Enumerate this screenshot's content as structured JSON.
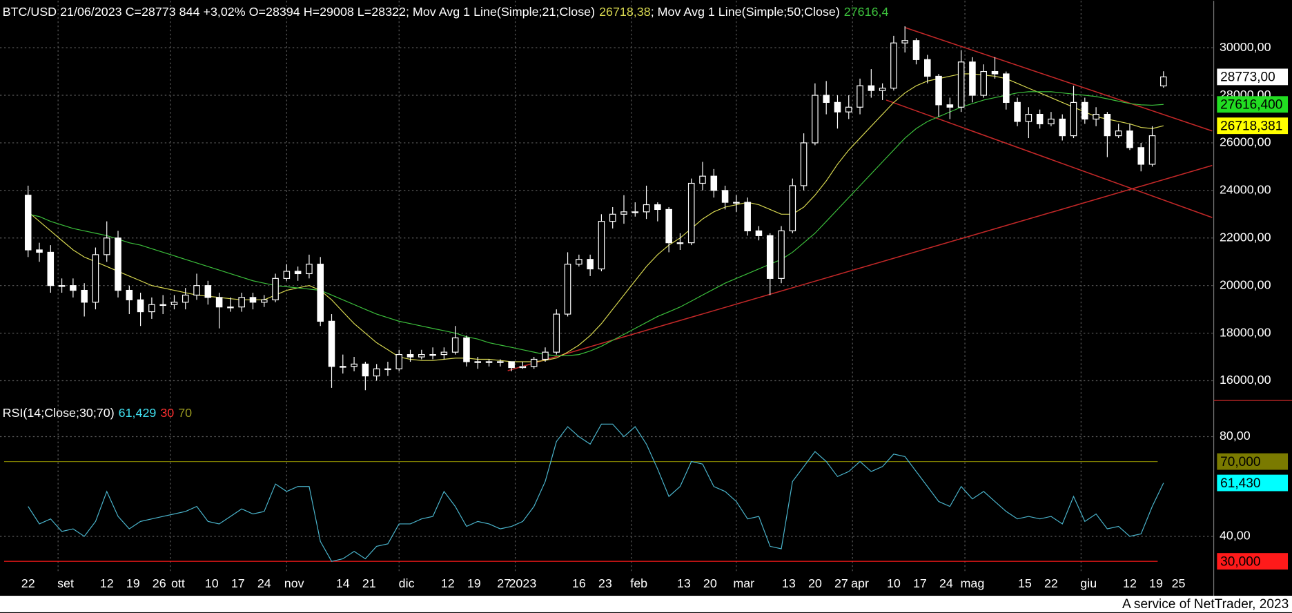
{
  "chart_data": [
    {
      "type": "candlestick",
      "title": "BTC/USD 21/06/2023 C=28773 844 +3,02% O=28394 H=29008 L=28322",
      "candle_color": "#ffffff",
      "x": [
        0,
        3,
        6,
        9,
        12,
        15,
        18,
        21,
        24,
        27,
        30,
        33,
        36,
        39,
        42,
        45,
        48,
        51,
        54,
        57,
        60,
        63,
        66,
        69,
        72,
        75,
        78,
        81,
        84,
        87,
        90,
        93,
        96,
        99,
        102,
        105,
        108,
        111,
        114,
        117,
        120,
        123,
        126,
        129,
        132,
        135,
        138,
        141,
        144,
        147,
        150,
        153,
        156,
        159,
        162,
        165,
        168,
        171,
        174,
        177,
        180,
        183,
        186,
        189,
        192,
        195,
        198,
        201,
        204,
        207,
        210,
        213,
        216,
        219,
        222,
        225,
        228,
        231,
        234,
        237,
        240,
        243,
        246,
        249,
        252,
        255,
        258,
        261,
        264,
        267,
        270,
        273,
        276,
        279,
        282,
        285,
        288,
        291,
        294,
        297,
        300,
        303
      ],
      "open": [
        23800,
        21500,
        21400,
        20000,
        20000,
        19800,
        19300,
        21300,
        22000,
        19800,
        19400,
        18900,
        19200,
        19200,
        19300,
        19600,
        20000,
        19500,
        19100,
        19100,
        19500,
        19300,
        19400,
        20300,
        20600,
        20500,
        20900,
        18500,
        16600,
        16600,
        16700,
        16200,
        16500,
        16500,
        17100,
        17000,
        17100,
        17100,
        17200,
        17800,
        16800,
        16800,
        16800,
        16800,
        16550,
        16600,
        16900,
        17200,
        18800,
        20900,
        21100,
        20700,
        22700,
        23000,
        23100,
        23100,
        23400,
        23200,
        21800,
        21800,
        24300,
        24600,
        24000,
        23500,
        23500,
        22300,
        22100,
        20300,
        22300,
        24200,
        26000,
        28000,
        27700,
        27300,
        27500,
        28400,
        28200,
        28300,
        30200,
        30300,
        29500,
        28800,
        27600,
        27500,
        29400,
        28000,
        29000,
        28900,
        27700,
        26900,
        27200,
        26800,
        27000,
        26300,
        27700,
        27000,
        27200,
        26300,
        26500,
        25800,
        25100,
        28394
      ],
      "high": [
        24200,
        21800,
        21700,
        20300,
        20300,
        20100,
        21600,
        22700,
        22300,
        20000,
        19700,
        19500,
        19600,
        19600,
        19900,
        20500,
        20200,
        19700,
        19500,
        19700,
        19700,
        19600,
        20500,
        20900,
        20800,
        21300,
        21200,
        18800,
        17100,
        17000,
        16800,
        16700,
        16800,
        17300,
        17300,
        17300,
        17400,
        17400,
        18300,
        17900,
        17000,
        16900,
        16900,
        16800,
        16800,
        17000,
        17400,
        19000,
        21400,
        21300,
        21300,
        23000,
        23300,
        23800,
        23500,
        24200,
        23500,
        23300,
        22200,
        24500,
        25200,
        24900,
        24200,
        23800,
        23700,
        22500,
        22200,
        22500,
        24500,
        26400,
        28500,
        28600,
        28000,
        28000,
        28700,
        29100,
        28500,
        30500,
        30900,
        30400,
        29700,
        28900,
        27900,
        29900,
        29600,
        29300,
        29600,
        29000,
        27900,
        27500,
        27400,
        27300,
        27200,
        28400,
        27900,
        27500,
        27300,
        26800,
        26800,
        26000,
        26700,
        29008
      ],
      "low": [
        21200,
        21000,
        19700,
        19700,
        19500,
        18700,
        19000,
        21000,
        19500,
        18800,
        18300,
        18600,
        18800,
        19000,
        19000,
        19400,
        19200,
        18200,
        18900,
        18900,
        19000,
        19100,
        19300,
        20200,
        20200,
        20300,
        18300,
        15700,
        16300,
        16400,
        15600,
        16000,
        16200,
        16400,
        16800,
        16900,
        16900,
        16900,
        17100,
        16600,
        16500,
        16600,
        16600,
        16400,
        16500,
        16500,
        16800,
        17100,
        18700,
        20800,
        20400,
        20600,
        22400,
        22600,
        22900,
        22800,
        22700,
        21400,
        21500,
        21700,
        24000,
        23700,
        23200,
        23100,
        22100,
        21900,
        19600,
        20100,
        22200,
        24000,
        25900,
        27200,
        26600,
        27000,
        27200,
        27900,
        27800,
        28200,
        29800,
        29300,
        28500,
        27100,
        27000,
        27300,
        27700,
        27900,
        28700,
        27400,
        26700,
        26200,
        26600,
        26700,
        26100,
        26200,
        26800,
        26700,
        25400,
        26200,
        25700,
        24800,
        25000,
        28322
      ],
      "close": [
        21500,
        21400,
        20000,
        20000,
        19800,
        19300,
        21300,
        22000,
        19800,
        19400,
        18900,
        19200,
        19200,
        19300,
        19600,
        20000,
        19500,
        19100,
        19100,
        19500,
        19300,
        19400,
        20300,
        20600,
        20500,
        20900,
        18500,
        16600,
        16600,
        16700,
        16200,
        16500,
        16500,
        17100,
        17000,
        17100,
        17100,
        17200,
        17800,
        16800,
        16800,
        16800,
        16800,
        16550,
        16600,
        16900,
        17200,
        18800,
        20900,
        21100,
        20700,
        22700,
        23000,
        23100,
        23100,
        23400,
        23200,
        21800,
        21800,
        24300,
        24600,
        24000,
        23500,
        23500,
        22300,
        22100,
        20300,
        22300,
        24200,
        26000,
        28000,
        27700,
        27300,
        27500,
        28400,
        28200,
        28300,
        30200,
        30300,
        29500,
        28800,
        27600,
        27500,
        29400,
        28000,
        29000,
        28900,
        27700,
        26900,
        27200,
        26800,
        27000,
        26300,
        27700,
        27000,
        27200,
        26300,
        26500,
        25800,
        25100,
        26300,
        28773
      ],
      "series": [
        {
          "name": "; Mov Avg 1 Line(Simple;21;Close)",
          "color": "#d8d850",
          "value_label": "26718,38",
          "values": [
            23100,
            22700,
            22300,
            21900,
            21500,
            21200,
            21000,
            20800,
            20600,
            20400,
            20200,
            20000,
            19900,
            19800,
            19700,
            19600,
            19550,
            19500,
            19450,
            19400,
            19400,
            19400,
            19600,
            19800,
            19900,
            20000,
            19800,
            19400,
            18900,
            18400,
            18000,
            17600,
            17300,
            17000,
            16900,
            16850,
            16850,
            16900,
            16950,
            16950,
            16900,
            16900,
            16850,
            16800,
            16800,
            16800,
            16850,
            16950,
            17200,
            17500,
            17900,
            18400,
            19000,
            19600,
            20200,
            20800,
            21300,
            21700,
            22000,
            22400,
            22800,
            23100,
            23300,
            23400,
            23500,
            23400,
            23200,
            23000,
            23000,
            23300,
            23800,
            24400,
            25100,
            25700,
            26200,
            26700,
            27200,
            27700,
            28100,
            28400,
            28600,
            28700,
            28800,
            28900,
            28900,
            28850,
            28800,
            28700,
            28500,
            28300,
            28100,
            27900,
            27700,
            27500,
            27300,
            27100,
            27000,
            26900,
            26800,
            26650,
            26600,
            26718.38
          ]
        },
        {
          "name": "; Mov Avg 1 Line(Simple;50;Close)",
          "color": "#3cc03c",
          "value_label": "27616,4",
          "values": [
            23000,
            22900,
            22700,
            22550,
            22400,
            22300,
            22200,
            22100,
            21950,
            21800,
            21700,
            21550,
            21400,
            21250,
            21100,
            20950,
            20800,
            20650,
            20500,
            20350,
            20200,
            20100,
            20000,
            19950,
            19900,
            19850,
            19800,
            19600,
            19400,
            19200,
            19000,
            18800,
            18650,
            18500,
            18400,
            18300,
            18200,
            18100,
            18000,
            17850,
            17750,
            17600,
            17500,
            17400,
            17300,
            17200,
            17100,
            17050,
            17050,
            17100,
            17250,
            17450,
            17700,
            17950,
            18200,
            18450,
            18700,
            18900,
            19100,
            19350,
            19600,
            19850,
            20100,
            20300,
            20500,
            20700,
            20900,
            21100,
            21400,
            21800,
            22200,
            22700,
            23200,
            23700,
            24200,
            24700,
            25200,
            25700,
            26200,
            26600,
            26900,
            27100,
            27300,
            27500,
            27650,
            27800,
            27900,
            28000,
            28100,
            28150,
            28150,
            28150,
            28100,
            28050,
            28000,
            27950,
            27850,
            27750,
            27650,
            27600,
            27580,
            27616.4
          ]
        }
      ],
      "trendlines": [
        {
          "color": "#c42828",
          "x": [
            234,
            316
          ],
          "y": [
            30850,
            26500
          ]
        },
        {
          "color": "#c42828",
          "x": [
            229,
            316
          ],
          "y": [
            27800,
            22860
          ]
        },
        {
          "color": "#c42828",
          "x": [
            128,
            316
          ],
          "y": [
            16420,
            25050
          ]
        }
      ],
      "last_labels": [
        {
          "value": 28773,
          "label": "28773,00",
          "color": "#ffffff"
        },
        {
          "value": 27616.4,
          "label": "27616,400",
          "color": "#22dd22"
        },
        {
          "value": 26718.381,
          "label": "26718,381",
          "color": "#ffff00"
        }
      ],
      "xlim": [
        -7.5,
        316.4
      ],
      "ylim": [
        15170,
        31975
      ],
      "yticks": [
        {
          "value": 16000,
          "label": "16000,00"
        },
        {
          "value": 18000,
          "label": "18000,00"
        },
        {
          "value": 20000,
          "label": "20000,00"
        },
        {
          "value": 22000,
          "label": "22000,00"
        },
        {
          "value": 24000,
          "label": "24000,00"
        },
        {
          "value": 26000,
          "label": "26000,00"
        },
        {
          "value": 28000,
          "label": "28000,00"
        },
        {
          "value": 30000,
          "label": "30000,00"
        }
      ],
      "xticks": [
        {
          "value": 0,
          "label": "22"
        },
        {
          "value": 10,
          "label": "set"
        },
        {
          "value": 21,
          "label": "12"
        },
        {
          "value": 28,
          "label": "19"
        },
        {
          "value": 35,
          "label": "26"
        },
        {
          "value": 40,
          "label": "ott"
        },
        {
          "value": 49,
          "label": "10"
        },
        {
          "value": 56,
          "label": "17"
        },
        {
          "value": 63,
          "label": "24"
        },
        {
          "value": 71,
          "label": "nov"
        },
        {
          "value": 84,
          "label": "14"
        },
        {
          "value": 91,
          "label": "21"
        },
        {
          "value": 101,
          "label": "dic"
        },
        {
          "value": 112,
          "label": "12"
        },
        {
          "value": 119,
          "label": "19"
        },
        {
          "value": 127,
          "label": "27"
        },
        {
          "value": 132,
          "label": "2023"
        },
        {
          "value": 147,
          "label": "16"
        },
        {
          "value": 154,
          "label": "23"
        },
        {
          "value": 163,
          "label": "feb"
        },
        {
          "value": 175,
          "label": "13"
        },
        {
          "value": 182,
          "label": "20"
        },
        {
          "value": 191,
          "label": "mar"
        },
        {
          "value": 203,
          "label": "13"
        },
        {
          "value": 210,
          "label": "20"
        },
        {
          "value": 217,
          "label": "27"
        },
        {
          "value": 222,
          "label": "apr"
        },
        {
          "value": 231,
          "label": "10"
        },
        {
          "value": 238,
          "label": "17"
        },
        {
          "value": 245,
          "label": "24"
        },
        {
          "value": 252,
          "label": "mag"
        },
        {
          "value": 266,
          "label": "15"
        },
        {
          "value": 273,
          "label": "22"
        },
        {
          "value": 283,
          "label": "giu"
        },
        {
          "value": 294,
          "label": "12"
        },
        {
          "value": 301,
          "label": "19"
        },
        {
          "value": 307,
          "label": "25"
        }
      ],
      "vgrid": [
        8,
        38,
        69,
        99,
        130,
        161,
        189,
        220,
        250,
        281
      ],
      "grid": true
    },
    {
      "type": "line",
      "title": "RSI(14;Close;30;70)",
      "series": [
        {
          "color": "#4ab4cc",
          "value_label": "61,429",
          "values": [
            52,
            45,
            47,
            42,
            43,
            40,
            46,
            58,
            48,
            43,
            46,
            47,
            48,
            49,
            50,
            52,
            46,
            45,
            48,
            51,
            49,
            50,
            61,
            58,
            60,
            60,
            38,
            30,
            31,
            34,
            31,
            36,
            37,
            45,
            45,
            47,
            48,
            58,
            52,
            44,
            46,
            45,
            43,
            44,
            46,
            52,
            62,
            78,
            84,
            80,
            77,
            85,
            85,
            80,
            84,
            77,
            67,
            56,
            60,
            70,
            69,
            60,
            58,
            54,
            47,
            48,
            36,
            35,
            62,
            68,
            74,
            70,
            64,
            66,
            70,
            66,
            68,
            73,
            72,
            66,
            60,
            54,
            52,
            60,
            55,
            58,
            54,
            50,
            47,
            48,
            47,
            48,
            45,
            56,
            46,
            49,
            43,
            44,
            40,
            41,
            52,
            61.429
          ]
        }
      ],
      "levels": [
        {
          "value": 30,
          "color": "#ff1a1a",
          "label": "30,000"
        },
        {
          "value": 70,
          "color": "#7a7a00",
          "label": "70,000"
        }
      ],
      "last_label": {
        "value": 61.43,
        "label": "61,430",
        "color": "#00ffff"
      },
      "ylim": [
        25.1,
        94.5
      ],
      "yticks": [
        {
          "value": 40,
          "label": "40,00"
        },
        {
          "value": 80,
          "label": "80,00"
        }
      ],
      "grid": true
    }
  ],
  "footer": "A service of NetTrader, 2023"
}
